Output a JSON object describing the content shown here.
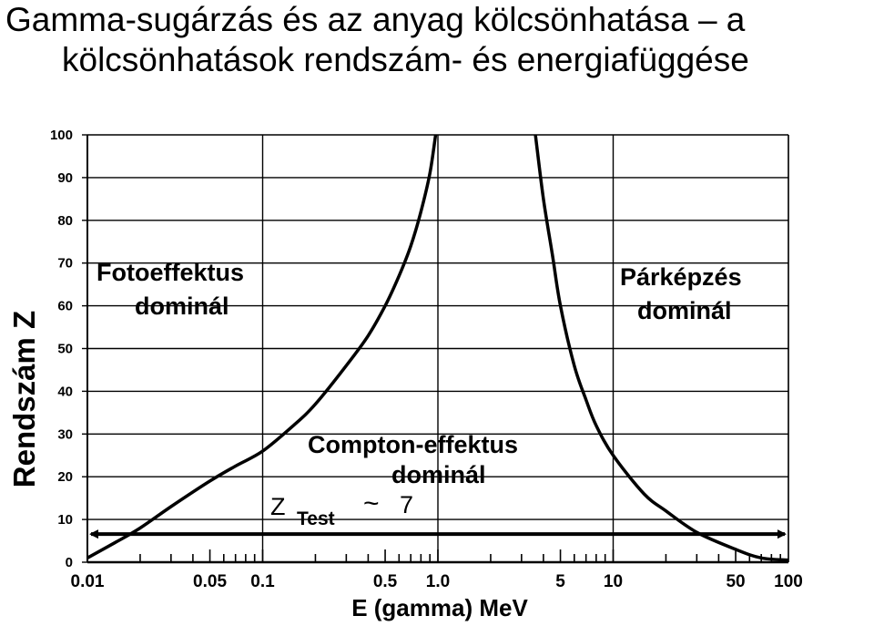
{
  "title_line1": "Gamma-sugárzás és az anyag kölcsönhatása – a",
  "title_line2": "kölcsönhatások rendszám- és energiafüggése",
  "chart_data": {
    "type": "line",
    "xlabel": "E (gamma) MeV",
    "ylabel": "Rendszám  Z",
    "x_scale": "log",
    "xlim": [
      0.01,
      100
    ],
    "ylim": [
      0,
      100
    ],
    "x_ticks": [
      {
        "value": 0.01,
        "label": "0.01"
      },
      {
        "value": 0.05,
        "label": "0.05"
      },
      {
        "value": 0.1,
        "label": "0.1"
      },
      {
        "value": 0.5,
        "label": "0.5"
      },
      {
        "value": 1.0,
        "label": "1.0"
      },
      {
        "value": 5,
        "label": "5"
      },
      {
        "value": 10,
        "label": "10"
      },
      {
        "value": 50,
        "label": "50"
      },
      {
        "value": 100,
        "label": "100"
      }
    ],
    "y_ticks": [
      {
        "value": 0,
        "label": "0"
      },
      {
        "value": 10,
        "label": "10"
      },
      {
        "value": 20,
        "label": "20"
      },
      {
        "value": 30,
        "label": "30"
      },
      {
        "value": 40,
        "label": "40"
      },
      {
        "value": 50,
        "label": "50"
      },
      {
        "value": 60,
        "label": "60"
      },
      {
        "value": 70,
        "label": "70"
      },
      {
        "value": 80,
        "label": "80"
      },
      {
        "value": 90,
        "label": "90"
      },
      {
        "value": 100,
        "label": "100"
      }
    ],
    "grid": true,
    "series": [
      {
        "x": [
          0.01,
          0.015,
          0.02,
          0.03,
          0.05,
          0.07,
          0.1,
          0.15,
          0.2,
          0.3,
          0.4,
          0.5,
          0.6,
          0.7,
          0.8,
          0.9,
          0.97
        ],
        "y": [
          1,
          5,
          8,
          13,
          19,
          22.5,
          26,
          32,
          37,
          46,
          53,
          60,
          67,
          74,
          82,
          91,
          100
        ]
      },
      {
        "x": [
          3.6,
          4,
          4.5,
          5,
          6,
          7,
          8,
          10,
          15,
          20,
          30,
          50,
          70,
          100
        ],
        "y": [
          100,
          85,
          72,
          60,
          46,
          38,
          32,
          25,
          16,
          12,
          7,
          3,
          1,
          0.5
        ]
      }
    ],
    "regions": [
      {
        "line1": "Fotoeffektus",
        "line2": "dominál"
      },
      {
        "line1": "Párképzés",
        "line2": "dominál"
      },
      {
        "line1": "Compton-effektus",
        "line2": "dominál"
      }
    ],
    "annotation": {
      "z": "Z",
      "sub": "Test",
      "approx": "~",
      "value": "7",
      "z_value": 7,
      "x_range": [
        0.01,
        100
      ]
    }
  }
}
